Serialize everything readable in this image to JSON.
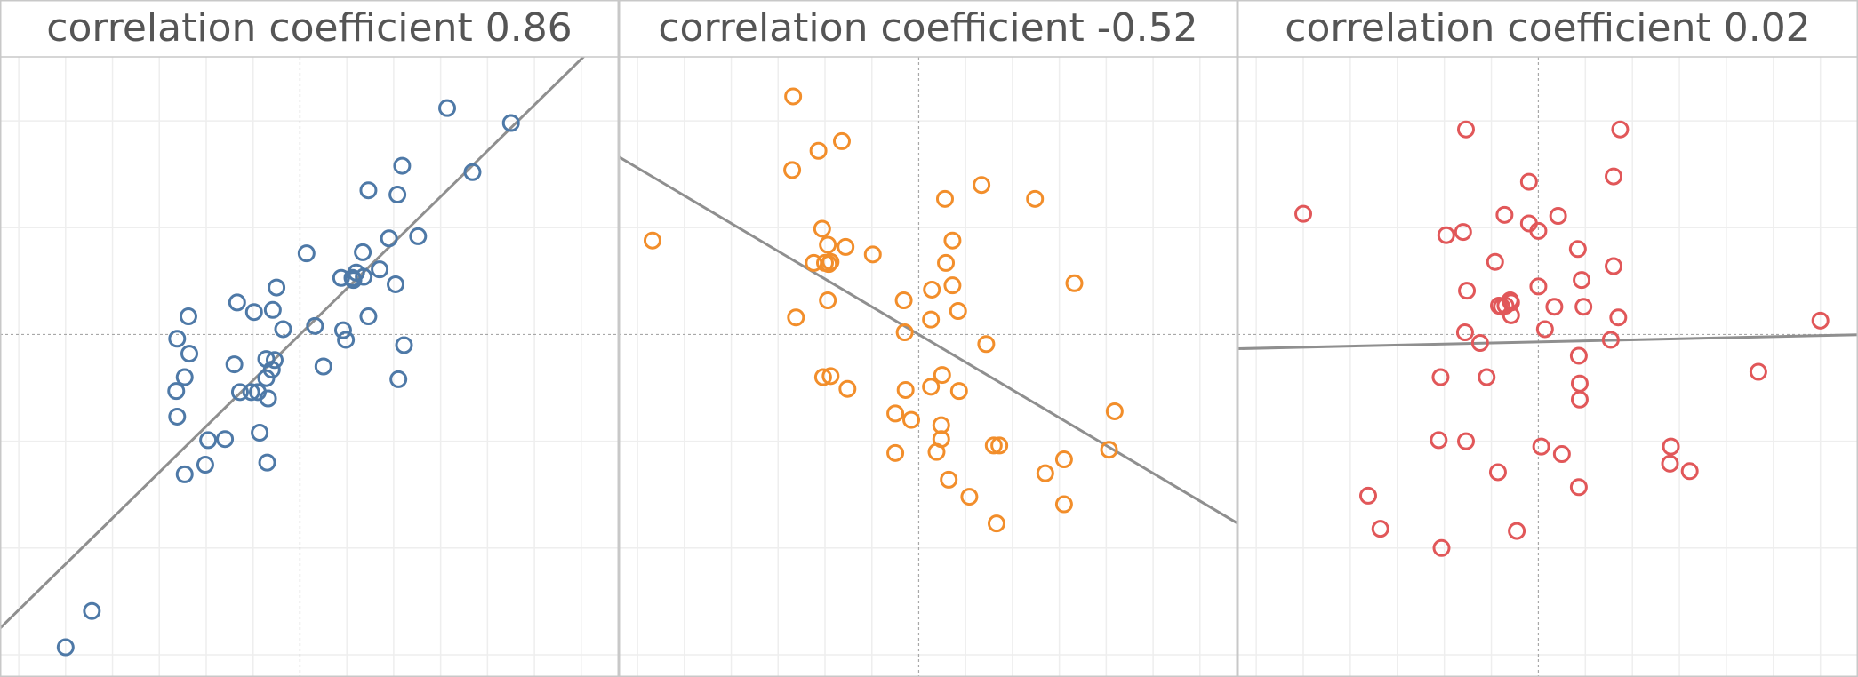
{
  "colors": {
    "panel_border": "#c8c8c8",
    "grid": "#eeeeee",
    "zero_line": "#a8a8a8",
    "fit_line": "#8f8f8f",
    "title_text": "#555555"
  },
  "chart_data": [
    {
      "type": "scatter",
      "title": "correlation coefficient 0.86",
      "color": "#4e79a7",
      "xlim": [
        -3.2,
        3.4
      ],
      "ylim": [
        -3.2,
        2.6
      ],
      "grid": true,
      "fit_line": {
        "slope": 0.86,
        "intercept": 0.0
      },
      "points": [
        [
          -2.5,
          -2.93
        ],
        [
          -2.22,
          -2.59
        ],
        [
          -1.23,
          -1.31
        ],
        [
          -1.01,
          -1.22
        ],
        [
          -0.98,
          -0.99
        ],
        [
          -1.31,
          -0.77
        ],
        [
          -1.32,
          -0.53
        ],
        [
          -1.23,
          -0.4
        ],
        [
          -1.18,
          -0.18
        ],
        [
          -1.31,
          -0.04
        ],
        [
          -1.19,
          0.17
        ],
        [
          -0.8,
          -0.98
        ],
        [
          -0.7,
          -0.28
        ],
        [
          -0.64,
          -0.54
        ],
        [
          -0.52,
          -0.54
        ],
        [
          -0.45,
          -0.54
        ],
        [
          -0.43,
          -0.92
        ],
        [
          -0.34,
          -0.6
        ],
        [
          -0.36,
          -0.41
        ],
        [
          -0.36,
          -0.23
        ],
        [
          -0.3,
          -0.33
        ],
        [
          -0.27,
          -0.24
        ],
        [
          -0.35,
          -1.2
        ],
        [
          -0.67,
          0.3
        ],
        [
          -0.49,
          0.21
        ],
        [
          -0.29,
          0.23
        ],
        [
          -0.25,
          0.44
        ],
        [
          -0.18,
          0.05
        ],
        [
          0.07,
          0.76
        ],
        [
          0.16,
          0.08
        ],
        [
          0.25,
          -0.3
        ],
        [
          0.46,
          0.04
        ],
        [
          0.49,
          -0.05
        ],
        [
          0.44,
          0.53
        ],
        [
          0.56,
          0.53
        ],
        [
          0.6,
          0.58
        ],
        [
          0.57,
          0.51
        ],
        [
          0.68,
          0.54
        ],
        [
          0.73,
          0.17
        ],
        [
          0.67,
          0.77
        ],
        [
          0.85,
          0.61
        ],
        [
          0.95,
          0.9
        ],
        [
          1.02,
          0.47
        ],
        [
          1.04,
          1.31
        ],
        [
          1.09,
          1.58
        ],
        [
          1.11,
          -0.1
        ],
        [
          1.05,
          -0.42
        ],
        [
          1.26,
          0.92
        ],
        [
          0.73,
          1.35
        ],
        [
          1.57,
          2.12
        ],
        [
          1.84,
          1.52
        ],
        [
          2.25,
          1.98
        ]
      ]
    },
    {
      "type": "scatter",
      "title": "correlation coefficient -0.52",
      "color": "#f28e2b",
      "xlim": [
        -3.2,
        3.4
      ],
      "ylim": [
        -3.2,
        2.6
      ],
      "grid": true,
      "fit_line": {
        "slope": -0.52,
        "intercept": 0.0
      },
      "points": [
        [
          -2.84,
          0.88
        ],
        [
          -1.34,
          2.23
        ],
        [
          -1.35,
          1.54
        ],
        [
          -1.07,
          1.72
        ],
        [
          -0.82,
          1.81
        ],
        [
          -1.03,
          0.99
        ],
        [
          -0.97,
          0.84
        ],
        [
          -0.94,
          0.68
        ],
        [
          -1.12,
          0.67
        ],
        [
          -1.0,
          0.67
        ],
        [
          -0.96,
          0.66
        ],
        [
          -0.78,
          0.82
        ],
        [
          -0.49,
          0.75
        ],
        [
          -0.97,
          0.32
        ],
        [
          -1.31,
          0.16
        ],
        [
          -1.02,
          -0.4
        ],
        [
          -0.94,
          -0.39
        ],
        [
          -0.76,
          -0.51
        ],
        [
          -0.16,
          0.32
        ],
        [
          -0.15,
          0.02
        ],
        [
          0.14,
          0.42
        ],
        [
          0.29,
          0.67
        ],
        [
          0.36,
          0.88
        ],
        [
          0.28,
          1.27
        ],
        [
          0.67,
          1.4
        ],
        [
          1.24,
          1.27
        ],
        [
          0.36,
          0.46
        ],
        [
          0.42,
          0.22
        ],
        [
          0.72,
          -0.09
        ],
        [
          0.13,
          0.14
        ],
        [
          -0.14,
          -0.52
        ],
        [
          0.13,
          -0.49
        ],
        [
          0.25,
          -0.38
        ],
        [
          0.43,
          -0.53
        ],
        [
          -0.25,
          -0.74
        ],
        [
          -0.08,
          -0.8
        ],
        [
          0.24,
          -0.85
        ],
        [
          0.24,
          -0.98
        ],
        [
          0.19,
          -1.1
        ],
        [
          -0.25,
          -1.11
        ],
        [
          0.32,
          -1.36
        ],
        [
          0.54,
          -1.52
        ],
        [
          0.83,
          -1.77
        ],
        [
          0.8,
          -1.04
        ],
        [
          0.86,
          -1.04
        ],
        [
          1.35,
          -1.3
        ],
        [
          1.55,
          -1.17
        ],
        [
          1.55,
          -1.59
        ],
        [
          2.03,
          -1.08
        ],
        [
          2.09,
          -0.72
        ],
        [
          1.66,
          0.48
        ]
      ]
    },
    {
      "type": "scatter",
      "title": "correlation coefficient 0.02",
      "color": "#e15759",
      "xlim": [
        -3.2,
        3.4
      ],
      "ylim": [
        -3.2,
        2.6
      ],
      "grid": true,
      "fit_line": {
        "slope": 0.02,
        "intercept": -0.07
      },
      "points": [
        [
          -2.5,
          1.13
        ],
        [
          -1.81,
          -1.51
        ],
        [
          -1.68,
          -1.82
        ],
        [
          -1.03,
          -2.0
        ],
        [
          -1.06,
          -0.99
        ],
        [
          -1.04,
          -0.4
        ],
        [
          -0.98,
          0.93
        ],
        [
          -0.8,
          0.96
        ],
        [
          -0.77,
          1.92
        ],
        [
          -0.76,
          0.41
        ],
        [
          -0.78,
          0.02
        ],
        [
          -0.62,
          -0.08
        ],
        [
          -0.55,
          -0.4
        ],
        [
          -0.77,
          -1.0
        ],
        [
          -0.46,
          0.68
        ],
        [
          -0.42,
          0.27
        ],
        [
          -0.39,
          0.26
        ],
        [
          -0.35,
          0.27
        ],
        [
          -0.3,
          0.32
        ],
        [
          -0.29,
          0.18
        ],
        [
          -0.29,
          0.3
        ],
        [
          -0.36,
          1.12
        ],
        [
          -0.23,
          -1.84
        ],
        [
          -0.43,
          -1.29
        ],
        [
          -0.1,
          1.43
        ],
        [
          -0.1,
          1.04
        ],
        [
          0.0,
          0.97
        ],
        [
          0.21,
          1.11
        ],
        [
          0.0,
          0.45
        ],
        [
          0.07,
          0.05
        ],
        [
          0.17,
          0.26
        ],
        [
          0.42,
          0.8
        ],
        [
          0.46,
          0.51
        ],
        [
          0.48,
          0.26
        ],
        [
          0.8,
          0.64
        ],
        [
          0.85,
          0.16
        ],
        [
          0.77,
          -0.05
        ],
        [
          0.43,
          -0.2
        ],
        [
          0.44,
          -0.46
        ],
        [
          0.44,
          -0.61
        ],
        [
          0.8,
          1.48
        ],
        [
          0.87,
          1.92
        ],
        [
          2.34,
          -0.35
        ],
        [
          3.0,
          0.13
        ],
        [
          0.25,
          -1.12
        ],
        [
          0.03,
          -1.05
        ],
        [
          0.43,
          -1.43
        ],
        [
          1.41,
          -1.05
        ],
        [
          1.4,
          -1.21
        ],
        [
          1.61,
          -1.28
        ]
      ]
    }
  ]
}
